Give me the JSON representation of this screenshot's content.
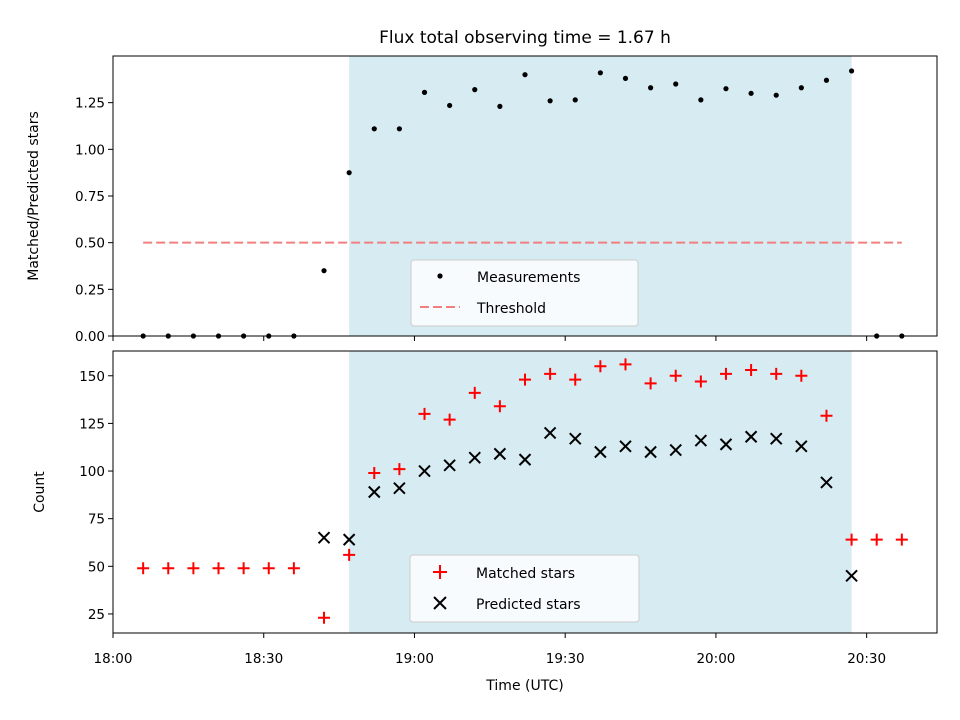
{
  "chart_data": [
    {
      "type": "scatter",
      "title": "Flux total observing time = 1.67 h",
      "ylabel": "Matched/Predicted stars",
      "xlim": [
        "18:00",
        "20:44"
      ],
      "ylim": [
        0,
        1.5
      ],
      "yticks": [
        "0.00",
        "0.25",
        "0.50",
        "0.75",
        "1.00",
        "1.25"
      ],
      "shaded_region": {
        "start": "18:47",
        "end": "20:27",
        "color": "#add8e6"
      },
      "threshold": {
        "name": "Threshold",
        "value": 0.5,
        "start": "18:06",
        "end": "20:37",
        "color": "#f08080"
      },
      "series": [
        {
          "name": "Measurements",
          "color": "#000000",
          "x": [
            "18:06",
            "18:11",
            "18:16",
            "18:21",
            "18:26",
            "18:31",
            "18:36",
            "18:42",
            "18:47",
            "18:52",
            "18:57",
            "19:02",
            "19:07",
            "19:12",
            "19:17",
            "19:22",
            "19:27",
            "19:32",
            "19:37",
            "19:42",
            "19:47",
            "19:52",
            "19:57",
            "20:02",
            "20:07",
            "20:12",
            "20:17",
            "20:22",
            "20:27",
            "20:32",
            "20:37"
          ],
          "y": [
            0,
            0,
            0,
            0,
            0,
            0,
            0,
            0.35,
            0.875,
            1.11,
            1.11,
            1.305,
            1.235,
            1.32,
            1.23,
            1.4,
            1.26,
            1.265,
            1.41,
            1.38,
            1.33,
            1.35,
            1.265,
            1.325,
            1.3,
            1.29,
            1.33,
            1.37,
            1.42,
            0,
            0
          ]
        }
      ],
      "legend": {
        "position": "lower center",
        "entries": [
          "Measurements",
          "Threshold"
        ]
      }
    },
    {
      "type": "scatter",
      "xlabel": "Time (UTC)",
      "ylabel": "Count",
      "xlim": [
        "18:00",
        "20:44"
      ],
      "ylim": [
        15,
        163
      ],
      "yticks": [
        "25",
        "50",
        "75",
        "100",
        "125",
        "150"
      ],
      "xticks": [
        "18:00",
        "18:30",
        "19:00",
        "19:30",
        "20:00",
        "20:30"
      ],
      "shaded_region": {
        "start": "18:47",
        "end": "20:27",
        "color": "#add8e6"
      },
      "series": [
        {
          "name": "Matched stars",
          "marker": "+",
          "color": "#ff0000",
          "x": [
            "18:06",
            "18:11",
            "18:16",
            "18:21",
            "18:26",
            "18:31",
            "18:36",
            "18:42",
            "18:47",
            "18:52",
            "18:57",
            "19:02",
            "19:07",
            "19:12",
            "19:17",
            "19:22",
            "19:27",
            "19:32",
            "19:37",
            "19:42",
            "19:47",
            "19:52",
            "19:57",
            "20:02",
            "20:07",
            "20:12",
            "20:17",
            "20:22",
            "20:27",
            "20:32",
            "20:37"
          ],
          "y": [
            49,
            49,
            49,
            49,
            49,
            49,
            49,
            23,
            56,
            99,
            101,
            130,
            127,
            141,
            134,
            148,
            151,
            148,
            155,
            156,
            146,
            150,
            147,
            151,
            153,
            151,
            150,
            129,
            64,
            64,
            64
          ]
        },
        {
          "name": "Predicted stars",
          "marker": "x",
          "color": "#000000",
          "x": [
            "18:42",
            "18:47",
            "18:52",
            "18:57",
            "19:02",
            "19:07",
            "19:12",
            "19:17",
            "19:22",
            "19:27",
            "19:32",
            "19:37",
            "19:42",
            "19:47",
            "19:52",
            "19:57",
            "20:02",
            "20:07",
            "20:12",
            "20:17",
            "20:22",
            "20:27"
          ],
          "y": [
            65,
            64,
            89,
            91,
            100,
            103,
            107,
            109,
            106,
            120,
            117,
            110,
            113,
            110,
            111,
            116,
            114,
            118,
            117,
            113,
            94,
            45
          ]
        }
      ],
      "legend": {
        "position": "lower center",
        "entries": [
          "Matched stars",
          "Predicted stars"
        ]
      }
    }
  ]
}
